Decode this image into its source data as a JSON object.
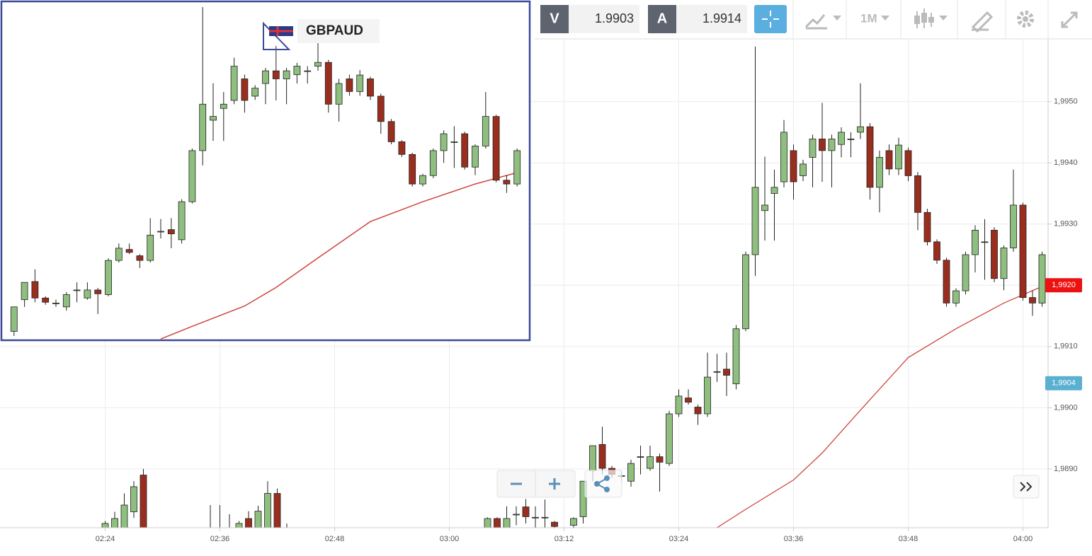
{
  "toolbar": {
    "bid_label": "V",
    "bid": 1.9903,
    "ask_label": "A",
    "ask": 1.9914,
    "interval": "1M"
  },
  "chart_data": {
    "type": "candlestick",
    "symbol": "GBPAUD",
    "x": [
      "02:24",
      "02:25",
      "02:26",
      "02:27",
      "02:28",
      "02:35",
      "02:36",
      "02:37",
      "02:38",
      "02:39",
      "02:40",
      "02:41",
      "02:42",
      "02:43",
      "03:04",
      "03:05",
      "03:06",
      "03:07",
      "03:08",
      "03:09",
      "03:10",
      "03:11",
      "03:13",
      "03:14",
      "03:15",
      "03:16",
      "03:17",
      "03:18",
      "03:19",
      "03:20",
      "03:21",
      "03:22",
      "03:23",
      "03:24",
      "03:25",
      "03:26",
      "03:27",
      "03:28",
      "03:29",
      "03:30",
      "03:31",
      "03:32",
      "03:33",
      "03:34",
      "03:35",
      "03:36",
      "03:37",
      "03:38",
      "03:39",
      "03:40",
      "03:41",
      "03:42",
      "03:43",
      "03:44",
      "03:45",
      "03:46",
      "03:47",
      "03:48",
      "03:49",
      "03:50",
      "03:51",
      "03:52",
      "03:53",
      "03:54",
      "03:55",
      "03:56",
      "03:57",
      "03:58",
      "03:59",
      "04:00",
      "04:01",
      "04:02"
    ],
    "open": [
      1.9878,
      1.98785,
      1.988,
      1.9883,
      1.9889,
      1.988,
      1.988,
      1.988,
      1.9879,
      1.98819,
      1.98795,
      1.988,
      1.9886,
      1.988,
      1.988,
      1.98819,
      1.988,
      1.98826,
      1.98838,
      1.98821,
      1.98821,
      1.98813,
      1.98808,
      1.98822,
      1.98897,
      1.9894,
      1.98901,
      1.98889,
      1.9888,
      1.9892,
      1.98901,
      1.9892,
      1.98909,
      1.9899,
      1.99016,
      1.99001,
      1.9899,
      1.99059,
      1.99063,
      1.99039,
      1.99129,
      1.9925,
      1.99322,
      1.9935,
      1.99369,
      1.9942,
      1.99379,
      1.99409,
      1.99439,
      1.9942,
      1.9943,
      1.99439,
      1.9945,
      1.99459,
      1.9936,
      1.9942,
      1.9939,
      1.9942,
      1.99379,
      1.99319,
      1.99271,
      1.99241,
      1.99171,
      1.99191,
      1.9925,
      1.99271,
      1.9929,
      1.99211,
      1.99261,
      1.99331,
      1.9918,
      1.99171
    ],
    "high": [
      1.98815,
      1.9883,
      1.9886,
      1.9888,
      1.989,
      1.98841,
      1.98841,
      1.98826,
      1.98815,
      1.98831,
      1.9884,
      1.9888,
      1.98868,
      1.98811,
      1.98821,
      1.98821,
      1.98839,
      1.98839,
      1.98851,
      1.98839,
      1.9885,
      1.98815,
      1.98821,
      1.9888,
      1.98938,
      1.98969,
      1.98905,
      1.98897,
      1.98915,
      1.98938,
      1.98938,
      1.98925,
      1.98995,
      1.9903,
      1.9903,
      1.99005,
      1.9909,
      1.99088,
      1.9909,
      1.99135,
      1.99255,
      1.9959,
      1.9941,
      1.99389,
      1.9947,
      1.9943,
      1.99405,
      1.99446,
      1.99498,
      1.99446,
      1.99458,
      1.9945,
      1.9953,
      1.99465,
      1.9942,
      1.9943,
      1.99441,
      1.99425,
      1.99385,
      1.99325,
      1.99275,
      1.99245,
      1.99195,
      1.99255,
      1.99298,
      1.99308,
      1.99295,
      1.99265,
      1.99389,
      1.99335,
      1.99192,
      1.99255
    ],
    "low": [
      1.9877,
      1.98775,
      1.9879,
      1.9882,
      1.9878,
      1.9879,
      1.9879,
      1.9879,
      1.9878,
      1.9878,
      1.98785,
      1.9879,
      1.98785,
      1.98795,
      1.9879,
      1.9879,
      1.9879,
      1.98808,
      1.98811,
      1.98804,
      1.98804,
      1.988,
      1.98804,
      1.98811,
      1.9888,
      1.98891,
      1.98885,
      1.9888,
      1.98871,
      1.98891,
      1.98897,
      1.98863,
      1.98905,
      1.98985,
      1.99005,
      1.98972,
      1.98985,
      1.99042,
      1.99019,
      1.9903,
      1.99125,
      1.99215,
      1.99273,
      1.99273,
      1.9936,
      1.9934,
      1.9937,
      1.9936,
      1.99369,
      1.9936,
      1.99409,
      1.99409,
      1.99439,
      1.9934,
      1.99319,
      1.9938,
      1.9938,
      1.9937,
      1.9929,
      1.99265,
      1.99235,
      1.99165,
      1.99165,
      1.99185,
      1.99221,
      1.99209,
      1.99205,
      1.99192,
      1.99255,
      1.99175,
      1.9915,
      1.99165
    ],
    "close": [
      1.98811,
      1.98819,
      1.98841,
      1.98871,
      1.9879,
      1.988,
      1.988,
      1.988,
      1.98811,
      1.9879,
      1.98831,
      1.9886,
      1.98795,
      1.988,
      1.98819,
      1.988,
      1.98819,
      1.98826,
      1.98822,
      1.98821,
      1.98821,
      1.98806,
      1.98819,
      1.9888,
      1.98938,
      1.98901,
      1.98891,
      1.98889,
      1.98909,
      1.9892,
      1.9892,
      1.98911,
      1.9899,
      1.99019,
      1.99009,
      1.9899,
      1.9905,
      1.99059,
      1.99053,
      1.99129,
      1.9925,
      1.9936,
      1.99331,
      1.9936,
      1.9945,
      1.99369,
      1.99398,
      1.99439,
      1.9942,
      1.99439,
      1.9945,
      1.99439,
      1.99459,
      1.9936,
      1.99409,
      1.9939,
      1.99429,
      1.99379,
      1.99319,
      1.99271,
      1.99241,
      1.99171,
      1.99191,
      1.9925,
      1.9929,
      1.99271,
      1.99211,
      1.99261,
      1.99331,
      1.9918,
      1.99171,
      1.9925
    ],
    "up_color": "#8fbf7f",
    "down_color": "#9a2e1e",
    "ma": {
      "color": "#d0443a",
      "x": [
        "03:28",
        "03:31",
        "03:36",
        "03:39",
        "03:43",
        "03:48",
        "03:53",
        "03:58",
        "04:02"
      ],
      "values": [
        1.98804,
        1.98834,
        1.98882,
        1.98926,
        1.98996,
        1.99082,
        1.99129,
        1.99171,
        1.99198
      ]
    },
    "xlim": [
      "02:13",
      "04:03"
    ],
    "xticks": [
      "02:24",
      "02:36",
      "02:48",
      "03:00",
      "03:12",
      "03:24",
      "03:36",
      "03:48",
      "04:00"
    ],
    "ylim": [
      1.98804,
      1.99666
    ],
    "yticks": [
      {
        "value": 1.989,
        "label": "1,9890"
      },
      {
        "value": 1.99,
        "label": "1,9900"
      },
      {
        "value": 1.991,
        "label": "1,9910"
      },
      {
        "value": 1.992,
        "label": "1,9920"
      },
      {
        "value": 1.993,
        "label": "1,9930"
      },
      {
        "value": 1.994,
        "label": "1,9940"
      },
      {
        "value": 1.995,
        "label": "1,9950"
      }
    ],
    "grid": true,
    "price_markers": [
      {
        "value": 1.992,
        "label": "1,9920",
        "color": "#ee1111"
      },
      {
        "value": 1.9904,
        "label": "1,9904",
        "color": "#5ab0d0"
      }
    ],
    "inset_from": "03:14"
  }
}
